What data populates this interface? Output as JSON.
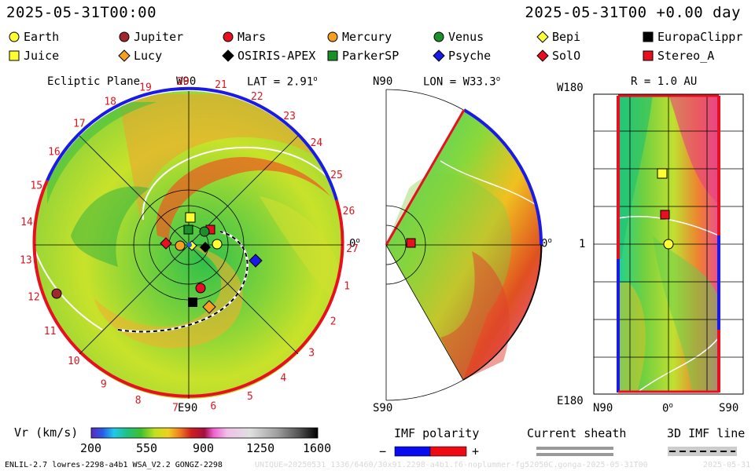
{
  "header": {
    "datetime_left": "2025-05-31T00:00",
    "datetime_right": "2025-05-31T00 +0.00 day"
  },
  "legend": [
    {
      "label": "Earth",
      "shape": "circle",
      "color": "#ffff33"
    },
    {
      "label": "Jupiter",
      "shape": "circle",
      "color": "#a0282d"
    },
    {
      "label": "Mars",
      "shape": "circle",
      "color": "#e81020"
    },
    {
      "label": "Mercury",
      "shape": "circle",
      "color": "#f5a020"
    },
    {
      "label": "Venus",
      "shape": "circle",
      "color": "#1a8f2a"
    },
    {
      "label": "Bepi",
      "shape": "diamond",
      "color": "#ffff33"
    },
    {
      "label": "EuropaClippr",
      "shape": "square",
      "color": "#000000"
    },
    {
      "label": "Juice",
      "shape": "square",
      "color": "#ffff33"
    },
    {
      "label": "Lucy",
      "shape": "diamond",
      "color": "#f5a020"
    },
    {
      "label": "OSIRIS-APEX",
      "shape": "diamond",
      "color": "#000000"
    },
    {
      "label": "ParkerSP",
      "shape": "square",
      "color": "#1a8f2a"
    },
    {
      "label": "Psyche",
      "shape": "diamond",
      "color": "#1a1ae8"
    },
    {
      "label": "SolO",
      "shape": "diamond",
      "color": "#e81020"
    },
    {
      "label": "Stereo_A",
      "shape": "square",
      "color": "#e81020"
    }
  ],
  "panels": {
    "ecliptic": {
      "title": "Ecliptic Plane",
      "top_label": "W90",
      "lat_label": "LAT = 2.91",
      "bottom_label": "E90",
      "right_label": "0",
      "carrington_labels": [
        "20",
        "21",
        "22",
        "23",
        "24",
        "25",
        "26",
        "27",
        "1",
        "2",
        "3",
        "4",
        "5",
        "6",
        "7",
        "8",
        "9",
        "10",
        "11",
        "12",
        "13",
        "14",
        "15",
        "16",
        "17",
        "18",
        "19"
      ]
    },
    "meridional": {
      "top_left": "N90",
      "lon_label": "LON = W33.3",
      "right_label": "0",
      "bottom_left": "S90"
    },
    "radial": {
      "r_label": "R = 1.0 AU",
      "left_top": "W180",
      "left_mid": "1",
      "left_bottom": "E180",
      "bottom_left": "N90",
      "bottom_mid": "0",
      "bottom_right": "S90"
    }
  },
  "colorbar": {
    "label": "Vr (km/s)",
    "ticks": [
      "200",
      "550",
      "900",
      "1250",
      "1600"
    ]
  },
  "imf": {
    "title": "IMF polarity",
    "minus": "−",
    "plus": "+",
    "neg_color": "#0a0aee",
    "pos_color": "#ee0a14"
  },
  "sheath": {
    "title": "Current sheath"
  },
  "imf3d": {
    "title": "3D IMF line"
  },
  "footer": {
    "model_info": "ENLIL-2.7 lowres-2298-a4b1 WSA_V2.2 GONGZ-2298",
    "run_id": "UNIQUE=20250531_1336/6460/30x91.2298-a4b1.f6-noplummer-fg52050C.gonga-2025-05-31T00",
    "date_suffix": "2025-05-31"
  },
  "chart_data": [
    {
      "type": "heatmap",
      "title": "Ecliptic Plane",
      "quantity": "Vr (km/s)",
      "range": [
        200,
        1600
      ],
      "bodies_shown": [
        "Earth",
        "Jupiter",
        "Mars",
        "Mercury",
        "Venus",
        "Bepi",
        "EuropaClippr",
        "Juice",
        "Lucy",
        "OSIRIS-APEX",
        "ParkerSP",
        "Psyche",
        "SolO",
        "Stereo_A"
      ]
    },
    {
      "type": "heatmap",
      "title": "LON = W33.3",
      "quantity": "Vr (km/s)",
      "range": [
        200,
        1600
      ]
    },
    {
      "type": "heatmap",
      "title": "R = 1.0 AU",
      "quantity": "Vr (km/s)",
      "range": [
        200,
        1600
      ],
      "x_ticks": [
        "N90",
        "0",
        "S90"
      ],
      "y_ticks": [
        "W180",
        "1",
        "E180"
      ]
    }
  ]
}
